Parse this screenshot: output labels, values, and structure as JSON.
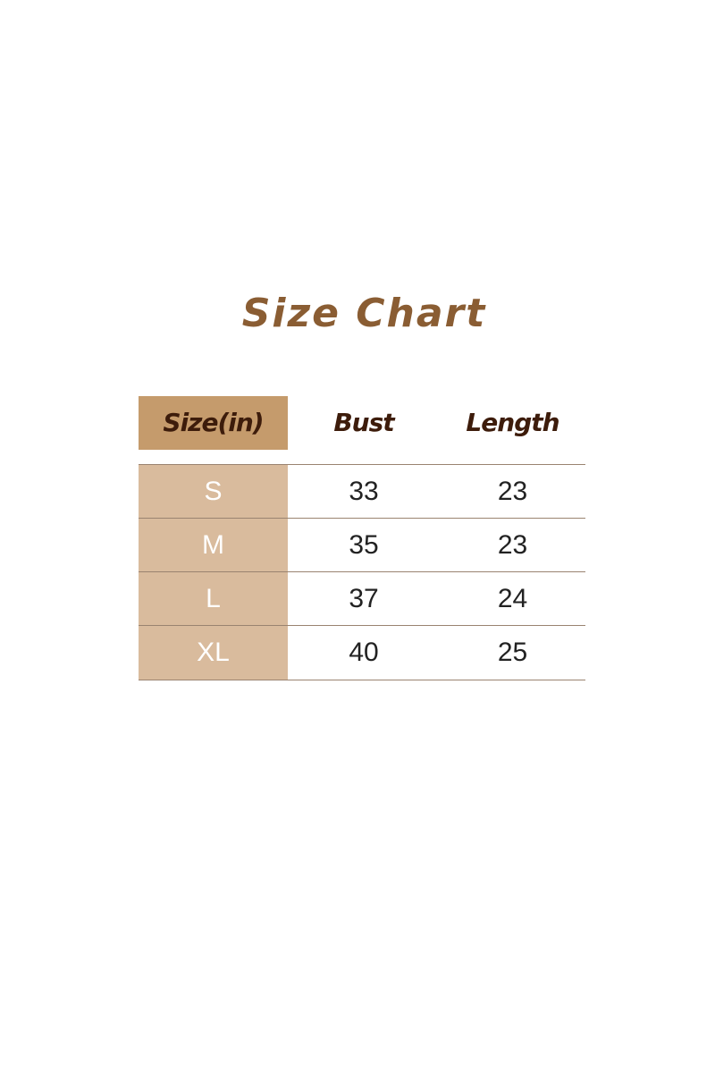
{
  "title": "Size Chart",
  "table": {
    "headers": [
      "Size(in)",
      "Bust",
      "Length"
    ],
    "rows": [
      [
        "S",
        "33",
        "23"
      ],
      [
        "M",
        "35",
        "23"
      ],
      [
        "L",
        "37",
        "24"
      ],
      [
        "XL",
        "40",
        "25"
      ]
    ]
  },
  "colors": {
    "title": "#8a5d33",
    "header_bg": "#c59b6c",
    "size_col_bg": "#d9bb9d",
    "header_text": "#3d1c0b",
    "rule": "#9a8370"
  }
}
